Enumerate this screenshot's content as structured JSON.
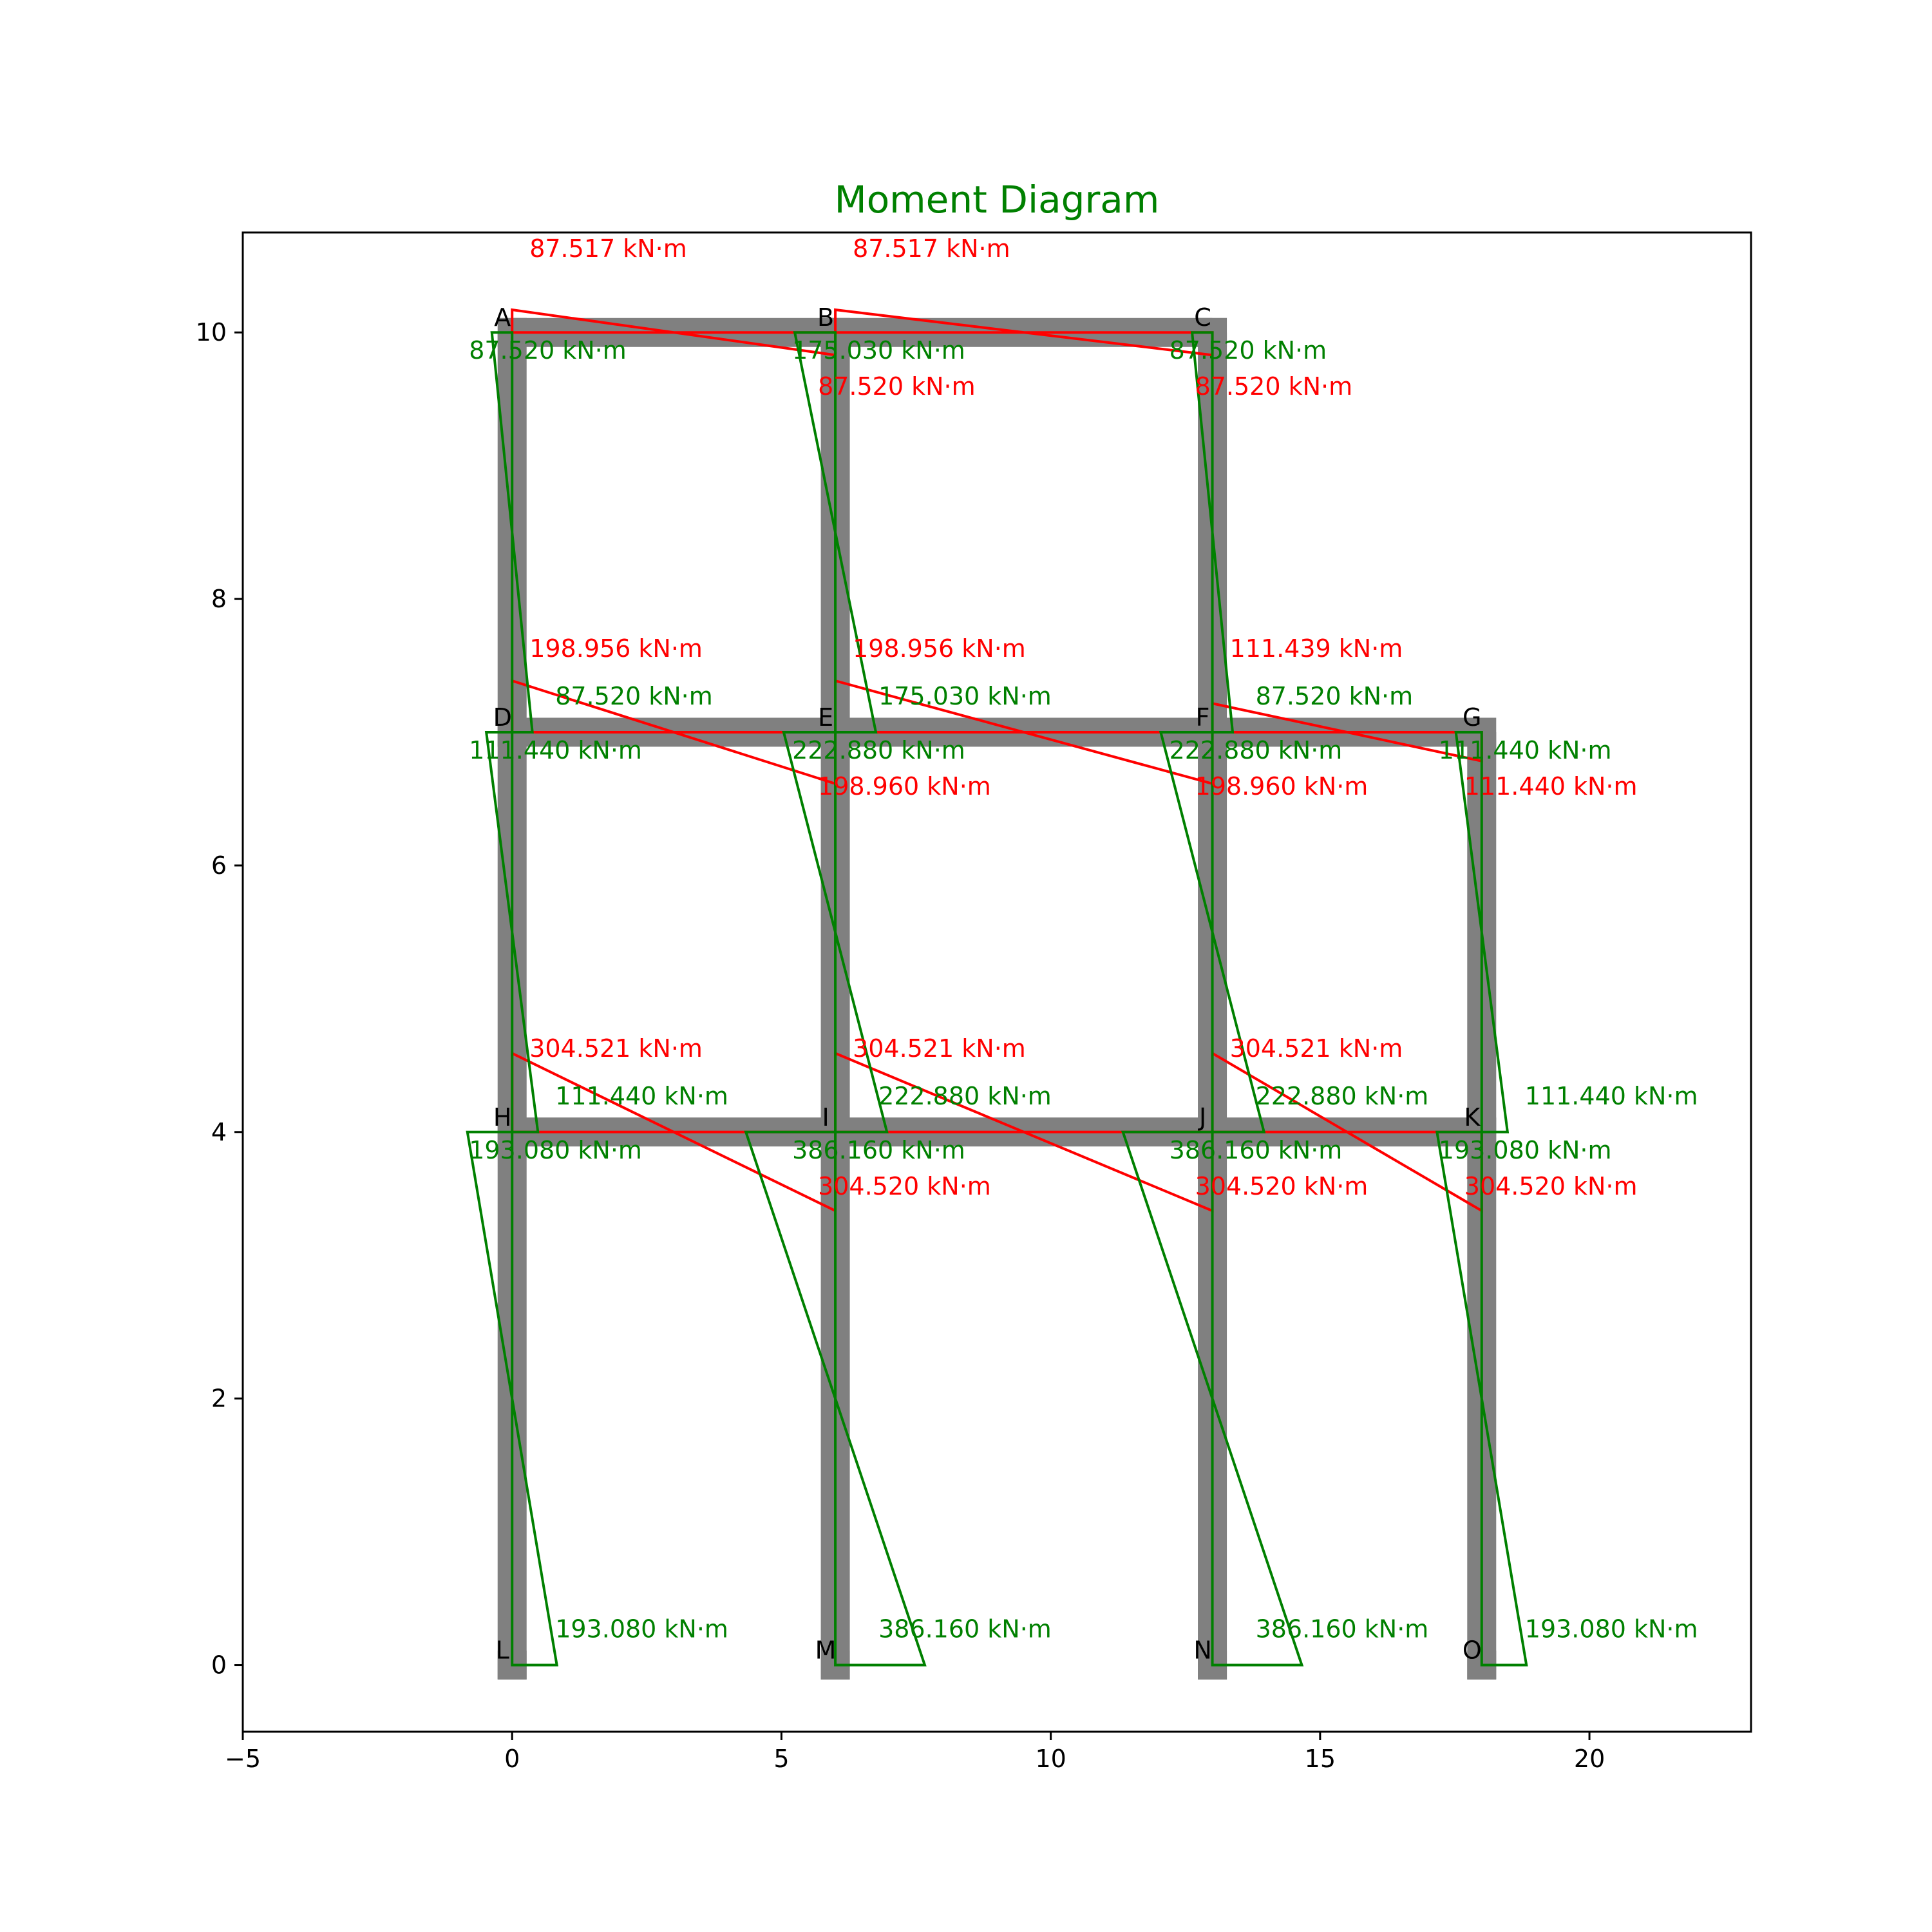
{
  "chart_data": {
    "type": "diagram",
    "title": "Moment Diagram",
    "xlabel": "",
    "ylabel": "",
    "xlim": [
      -5,
      23
    ],
    "ylim": [
      -0.5,
      10.75
    ],
    "x_ticks": [
      -5,
      0,
      5,
      10,
      15,
      20
    ],
    "y_ticks": [
      0,
      2,
      4,
      6,
      8,
      10
    ],
    "x_tick_labels": [
      "−5",
      "0",
      "5",
      "10",
      "15",
      "20"
    ],
    "y_tick_labels": [
      "0",
      "2",
      "4",
      "6",
      "8",
      "10"
    ],
    "grid": false,
    "colors": {
      "title": "#008000",
      "frame": "#808080",
      "beam_moment": "#ff0000",
      "column_moment": "#008000",
      "axes": "#000000"
    },
    "nodes": [
      {
        "name": "A",
        "x": 0,
        "y": 10
      },
      {
        "name": "B",
        "x": 6,
        "y": 10
      },
      {
        "name": "C",
        "x": 13,
        "y": 10
      },
      {
        "name": "D",
        "x": 0,
        "y": 7
      },
      {
        "name": "E",
        "x": 6,
        "y": 7
      },
      {
        "name": "F",
        "x": 13,
        "y": 7
      },
      {
        "name": "G",
        "x": 18,
        "y": 7
      },
      {
        "name": "H",
        "x": 0,
        "y": 4
      },
      {
        "name": "I",
        "x": 6,
        "y": 4
      },
      {
        "name": "J",
        "x": 13,
        "y": 4
      },
      {
        "name": "K",
        "x": 18,
        "y": 4
      },
      {
        "name": "L",
        "x": 0,
        "y": 0
      },
      {
        "name": "M",
        "x": 6,
        "y": 0
      },
      {
        "name": "N",
        "x": 13,
        "y": 0
      },
      {
        "name": "O",
        "x": 18,
        "y": 0
      }
    ],
    "members": [
      [
        "A",
        "B"
      ],
      [
        "B",
        "C"
      ],
      [
        "D",
        "E"
      ],
      [
        "E",
        "F"
      ],
      [
        "F",
        "G"
      ],
      [
        "H",
        "I"
      ],
      [
        "I",
        "J"
      ],
      [
        "J",
        "K"
      ],
      [
        "A",
        "D"
      ],
      [
        "D",
        "H"
      ],
      [
        "H",
        "L"
      ],
      [
        "B",
        "E"
      ],
      [
        "E",
        "I"
      ],
      [
        "I",
        "M"
      ],
      [
        "C",
        "F"
      ],
      [
        "F",
        "J"
      ],
      [
        "J",
        "N"
      ],
      [
        "G",
        "K"
      ],
      [
        "K",
        "O"
      ]
    ],
    "beam_moments": [
      {
        "start": "A",
        "end": "B",
        "m_start": 87.517,
        "m_end": 87.52,
        "label_start": "87.517 kN·m",
        "label_end": "87.520 kN·m"
      },
      {
        "start": "B",
        "end": "C",
        "m_start": 87.517,
        "m_end": 87.52,
        "label_start": "87.517 kN·m",
        "label_end": "87.520 kN·m"
      },
      {
        "start": "D",
        "end": "E",
        "m_start": 198.956,
        "m_end": 198.96,
        "label_start": "198.956 kN·m",
        "label_end": "198.960 kN·m"
      },
      {
        "start": "E",
        "end": "F",
        "m_start": 198.956,
        "m_end": 198.96,
        "label_start": "198.956 kN·m",
        "label_end": "198.960 kN·m"
      },
      {
        "start": "F",
        "end": "G",
        "m_start": 111.439,
        "m_end": 111.44,
        "label_start": "111.439 kN·m",
        "label_end": "111.440 kN·m"
      },
      {
        "start": "H",
        "end": "I",
        "m_start": 304.521,
        "m_end": 304.52,
        "label_start": "304.521 kN·m",
        "label_end": "304.520 kN·m"
      },
      {
        "start": "I",
        "end": "J",
        "m_start": 304.521,
        "m_end": 304.52,
        "label_start": "304.521 kN·m",
        "label_end": "304.520 kN·m"
      },
      {
        "start": "J",
        "end": "K",
        "m_start": 304.521,
        "m_end": 304.52,
        "label_start": "304.521 kN·m",
        "label_end": "304.520 kN·m"
      }
    ],
    "column_moments": [
      {
        "top": "A",
        "bottom": "D",
        "m_top": 87.52,
        "m_bottom": 87.52,
        "label_top": "87.520 kN·m",
        "label_bottom": "87.520 kN·m"
      },
      {
        "top": "B",
        "bottom": "E",
        "m_top": 175.03,
        "m_bottom": 175.03,
        "label_top": "175.030 kN·m",
        "label_bottom": "175.030 kN·m"
      },
      {
        "top": "C",
        "bottom": "F",
        "m_top": 87.52,
        "m_bottom": 87.52,
        "label_top": "87.520 kN·m",
        "label_bottom": "87.520 kN·m"
      },
      {
        "top": "D",
        "bottom": "H",
        "m_top": 111.44,
        "m_bottom": 111.44,
        "label_top": "111.440 kN·m",
        "label_bottom": "111.440 kN·m"
      },
      {
        "top": "E",
        "bottom": "I",
        "m_top": 222.88,
        "m_bottom": 222.88,
        "label_top": "222.880 kN·m",
        "label_bottom": "222.880 kN·m"
      },
      {
        "top": "F",
        "bottom": "J",
        "m_top": 222.88,
        "m_bottom": 222.88,
        "label_top": "222.880 kN·m",
        "label_bottom": "222.880 kN·m"
      },
      {
        "top": "G",
        "bottom": "K",
        "m_top": 111.44,
        "m_bottom": 111.44,
        "label_top": "111.440 kN·m",
        "label_bottom": "111.440 kN·m"
      },
      {
        "top": "H",
        "bottom": "L",
        "m_top": 193.08,
        "m_bottom": 193.08,
        "label_top": "193.080 kN·m",
        "label_bottom": "193.080 kN·m"
      },
      {
        "top": "I",
        "bottom": "M",
        "m_top": 386.16,
        "m_bottom": 386.16,
        "label_top": "386.160 kN·m",
        "label_bottom": "386.160 kN·m"
      },
      {
        "top": "J",
        "bottom": "N",
        "m_top": 386.16,
        "m_bottom": 386.16,
        "label_top": "386.160 kN·m",
        "label_bottom": "386.160 kN·m"
      },
      {
        "top": "K",
        "bottom": "O",
        "m_top": 193.08,
        "m_bottom": 193.08,
        "label_top": "193.080 kN·m",
        "label_bottom": "193.080 kN·m"
      }
    ]
  }
}
